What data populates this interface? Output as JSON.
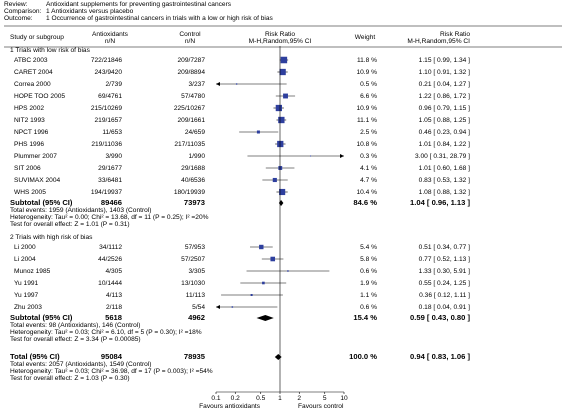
{
  "chart_data": {
    "type": "forest",
    "header": [
      {
        "label": "Review:",
        "text": "Antioxidant supplements for preventing gastrointestinal cancers"
      },
      {
        "label": "Comparison:",
        "text": "1 Antioxidants versus placebo"
      },
      {
        "label": "Outcome:",
        "text": "1 Occurrence of gastrointestinal cancers in trials with a low or high risk of bias"
      }
    ],
    "columns": {
      "study": "Study or subgroup",
      "exp": "Antioxidants",
      "exp_unit": "n/N",
      "ctrl": "Control",
      "ctrl_unit": "n/N",
      "plot": "Risk Ratio",
      "plot_unit": "M-H,Random,95% CI",
      "weight": "Weight",
      "ci": "Risk Ratio",
      "ci_unit": "M-H,Random,95% CI"
    },
    "groups": [
      {
        "title": "1 Trials with low risk of bias",
        "studies": [
          {
            "name": "ATBC 2003",
            "exp": "722/21846",
            "ctrl": "209/7287",
            "weight": 11.8,
            "weight_label": "11.8 %",
            "rr": 1.15,
            "lo": 0.99,
            "hi": 1.34,
            "ci_label": "1.15 [ 0.99, 1.34 ]"
          },
          {
            "name": "CARET 2004",
            "exp": "243/9420",
            "ctrl": "209/8894",
            "weight": 10.9,
            "weight_label": "10.9 %",
            "rr": 1.1,
            "lo": 0.91,
            "hi": 1.32,
            "ci_label": "1.10 [ 0.91, 1.32 ]"
          },
          {
            "name": "Correa 2000",
            "exp": "2/739",
            "ctrl": "3/237",
            "weight": 0.5,
            "weight_label": "0.5 %",
            "rr": 0.21,
            "lo": 0.04,
            "hi": 1.27,
            "ci_label": "0.21 [ 0.04, 1.27 ]"
          },
          {
            "name": "HOPE TOO 2005",
            "exp": "69/4761",
            "ctrl": "57/4780",
            "weight": 6.6,
            "weight_label": "6.6 %",
            "rr": 1.22,
            "lo": 0.86,
            "hi": 1.72,
            "ci_label": "1.22 [ 0.86, 1.72 ]"
          },
          {
            "name": "HPS 2002",
            "exp": "215/10269",
            "ctrl": "225/10267",
            "weight": 10.9,
            "weight_label": "10.9 %",
            "rr": 0.96,
            "lo": 0.79,
            "hi": 1.15,
            "ci_label": "0.96 [ 0.79, 1.15 ]"
          },
          {
            "name": "NIT2 1993",
            "exp": "219/1657",
            "ctrl": "209/1661",
            "weight": 11.1,
            "weight_label": "11.1 %",
            "rr": 1.05,
            "lo": 0.88,
            "hi": 1.25,
            "ci_label": "1.05 [ 0.88, 1.25 ]"
          },
          {
            "name": "NPCT 1996",
            "exp": "11/653",
            "ctrl": "24/659",
            "weight": 2.5,
            "weight_label": "2.5 %",
            "rr": 0.46,
            "lo": 0.23,
            "hi": 0.94,
            "ci_label": "0.46 [ 0.23, 0.94 ]"
          },
          {
            "name": "PHS 1996",
            "exp": "219/11036",
            "ctrl": "217/11035",
            "weight": 10.8,
            "weight_label": "10.8 %",
            "rr": 1.01,
            "lo": 0.84,
            "hi": 1.22,
            "ci_label": "1.01 [ 0.84, 1.22 ]"
          },
          {
            "name": "Plummer 2007",
            "exp": "3/990",
            "ctrl": "1/990",
            "weight": 0.3,
            "weight_label": "0.3 %",
            "rr": 3.0,
            "lo": 0.31,
            "hi": 28.79,
            "ci_label": "3.00 [ 0.31, 28.79 ]"
          },
          {
            "name": "SIT 2006",
            "exp": "29/1677",
            "ctrl": "29/1688",
            "weight": 4.1,
            "weight_label": "4.1 %",
            "rr": 1.01,
            "lo": 0.6,
            "hi": 1.68,
            "ci_label": "1.01 [ 0.60, 1.68 ]"
          },
          {
            "name": "SUVIMAX 2004",
            "exp": "33/6481",
            "ctrl": "40/6536",
            "weight": 4.7,
            "weight_label": "4.7 %",
            "rr": 0.83,
            "lo": 0.53,
            "hi": 1.32,
            "ci_label": "0.83 [ 0.53, 1.32 ]"
          },
          {
            "name": "WHS 2005",
            "exp": "194/19937",
            "ctrl": "180/19939",
            "weight": 10.4,
            "weight_label": "10.4 %",
            "rr": 1.08,
            "lo": 0.88,
            "hi": 1.32,
            "ci_label": "1.08 [ 0.88, 1.32 ]"
          }
        ],
        "subtotal": {
          "label": "Subtotal (95% CI)",
          "exp": 89466,
          "ctrl": 73973,
          "weight": 84.6,
          "weight_label": "84.6 %",
          "rr": 1.04,
          "lo": 0.96,
          "hi": 1.13,
          "ci_label": "1.04 [ 0.96, 1.13 ]"
        },
        "notes": [
          "Total events: 1959 (Antioxidants), 1403 (Control)",
          "Heterogeneity: Tau² = 0.00; Chi² = 13.68, df = 11 (P = 0.25); I² =20%",
          "Test for overall effect: Z = 1.01 (P = 0.31)"
        ]
      },
      {
        "title": "2 Trials with high risk of bias",
        "studies": [
          {
            "name": "Li 2000",
            "exp": "34/1112",
            "ctrl": "57/953",
            "weight": 5.4,
            "weight_label": "5.4 %",
            "rr": 0.51,
            "lo": 0.34,
            "hi": 0.77,
            "ci_label": "0.51 [ 0.34, 0.77 ]"
          },
          {
            "name": "Li 2004",
            "exp": "44/2526",
            "ctrl": "57/2507",
            "weight": 5.8,
            "weight_label": "5.8 %",
            "rr": 0.77,
            "lo": 0.52,
            "hi": 1.13,
            "ci_label": "0.77 [ 0.52, 1.13 ]"
          },
          {
            "name": "Munoz 1985",
            "exp": "4/305",
            "ctrl": "3/305",
            "weight": 0.6,
            "weight_label": "0.6 %",
            "rr": 1.33,
            "lo": 0.3,
            "hi": 5.91,
            "ci_label": "1.33 [ 0.30, 5.91 ]"
          },
          {
            "name": "Yu 1991",
            "exp": "10/1444",
            "ctrl": "13/1030",
            "weight": 1.9,
            "weight_label": "1.9 %",
            "rr": 0.55,
            "lo": 0.24,
            "hi": 1.25,
            "ci_label": "0.55 [ 0.24, 1.25 ]"
          },
          {
            "name": "Yu 1997",
            "exp": "4/113",
            "ctrl": "11/113",
            "weight": 1.1,
            "weight_label": "1.1 %",
            "rr": 0.36,
            "lo": 0.12,
            "hi": 1.11,
            "ci_label": "0.36 [ 0.12, 1.11 ]"
          },
          {
            "name": "Zhu 2003",
            "exp": "2/118",
            "ctrl": "5/54",
            "weight": 0.6,
            "weight_label": "0.6 %",
            "rr": 0.18,
            "lo": 0.04,
            "hi": 0.91,
            "ci_label": "0.18 [ 0.04, 0.91 ]"
          }
        ],
        "subtotal": {
          "label": "Subtotal (95% CI)",
          "exp": 5618,
          "ctrl": 4962,
          "weight": 15.4,
          "weight_label": "15.4 %",
          "rr": 0.59,
          "lo": 0.43,
          "hi": 0.8,
          "ci_label": "0.59 [ 0.43, 0.80 ]"
        },
        "notes": [
          "Total events: 98 (Antioxidants), 146 (Control)",
          "Heterogeneity: Tau² = 0.03; Chi² = 6.10, df = 5 (P = 0.30); I² =18%",
          "Test for overall effect: Z = 3.34 (P = 0.00085)"
        ]
      }
    ],
    "total": {
      "label": "Total (95% CI)",
      "exp": 95084,
      "ctrl": 78935,
      "weight": 100.0,
      "weight_label": "100.0 %",
      "rr": 0.94,
      "lo": 0.83,
      "hi": 1.06,
      "ci_label": "0.94 [ 0.83, 1.06 ]",
      "notes": [
        "Total events: 2057 (Antioxidants), 1549 (Control)",
        "Heterogeneity: Tau² = 0.03; Chi² = 36.98, df = 17 (P = 0.003); I² =54%",
        "Test for overall effect: Z = 1.03 (P = 0.30)"
      ]
    },
    "xlim": [
      0.1,
      10
    ],
    "xticks": [
      0.1,
      0.2,
      0.5,
      1,
      2,
      5,
      10
    ],
    "log": true,
    "favours_left": "Favours antioxidants",
    "favours_right": "Favours control",
    "box_color": "#2e3f9e",
    "diamond_color": "#000000"
  }
}
